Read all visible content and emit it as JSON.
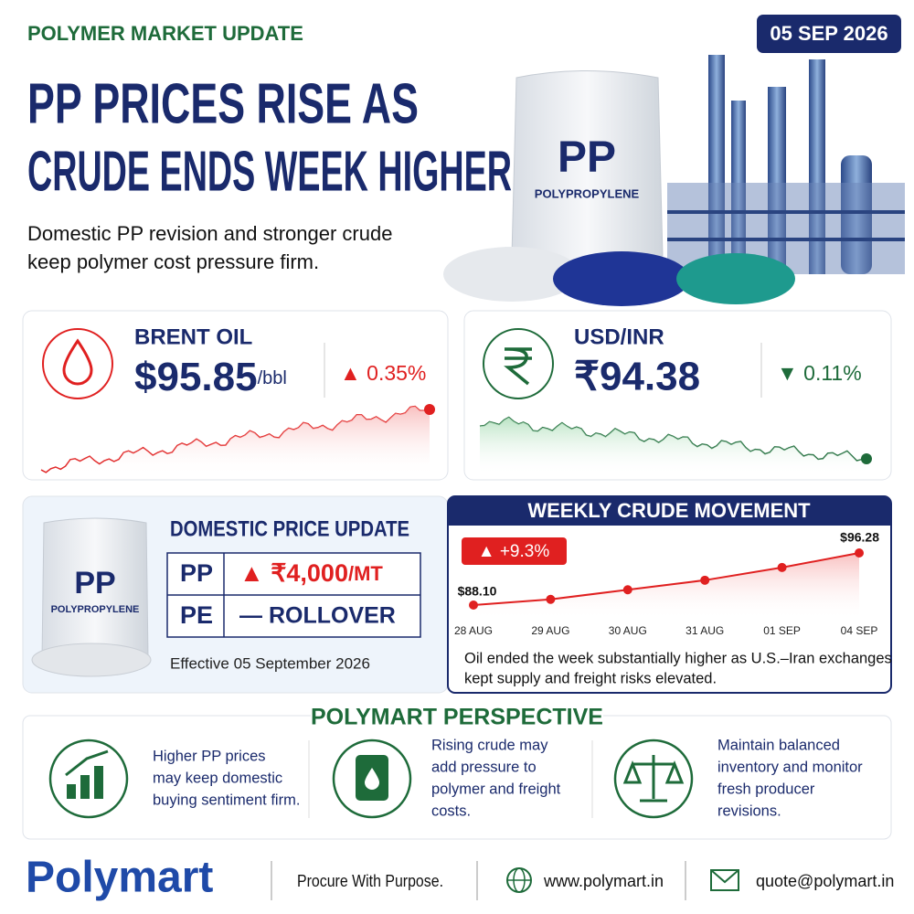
{
  "header": {
    "kicker": "POLYMER MARKET UPDATE",
    "date": "05 SEP 2026",
    "title_line1": "PP PRICES RISE AS",
    "title_line2": "CRUDE ENDS WEEK HIGHER",
    "subtitle_line1": "Domestic PP revision and stronger crude",
    "subtitle_line2": "keep polymer cost pressure firm.",
    "bag_label": "PP",
    "bag_sublabel": "POLYPROPYLENE"
  },
  "brent": {
    "label": "BRENT OIL",
    "price": "$95.85",
    "unit": "/bbl",
    "change": "▲ 0.35%"
  },
  "usdinr": {
    "label": "USD/INR",
    "price": "₹94.38",
    "change": "▼ 0.11%"
  },
  "domestic": {
    "title": "DOMESTIC PRICE UPDATE",
    "rows": [
      {
        "product": "PP",
        "change": "▲ ₹4,000",
        "unit": "/MT"
      },
      {
        "product": "PE",
        "change": "— ROLLOVER"
      }
    ],
    "effective": "Effective 05 September 2026",
    "bag_label": "PP",
    "bag_sublabel": "POLYPROPYLENE"
  },
  "weekly": {
    "type": "line",
    "title": "WEEKLY CRUDE MOVEMENT",
    "change": "▲ +9.3%",
    "color": "#e02020",
    "categories": [
      "28 AUG",
      "29 AUG",
      "30 AUG",
      "31 AUG",
      "01 SEP",
      "04 SEP"
    ],
    "values": [
      88.1,
      89.0,
      90.5,
      92.0,
      94.0,
      96.28
    ],
    "value_labels": [
      "$88.10",
      null,
      null,
      null,
      null,
      "$96.28"
    ],
    "note_line1": "Oil ended the week substantially higher as U.S.–Iran exchanges",
    "note_line2": "kept supply and freight risks elevated."
  },
  "perspective": {
    "title": "POLYMART PERSPECTIVE",
    "items": [
      {
        "lines": [
          "Higher PP prices",
          "may keep domestic",
          "buying sentiment firm."
        ]
      },
      {
        "lines": [
          "Rising crude may",
          "add pressure to",
          "polymer and freight",
          "costs."
        ]
      },
      {
        "lines": [
          "Maintain balanced",
          "inventory and monitor",
          "fresh producer",
          "revisions."
        ]
      }
    ]
  },
  "footer": {
    "brand": "Polymart",
    "tagline": "Procure With Purpose.",
    "website": "www.polymart.in",
    "email": "quote@polymart.in"
  }
}
